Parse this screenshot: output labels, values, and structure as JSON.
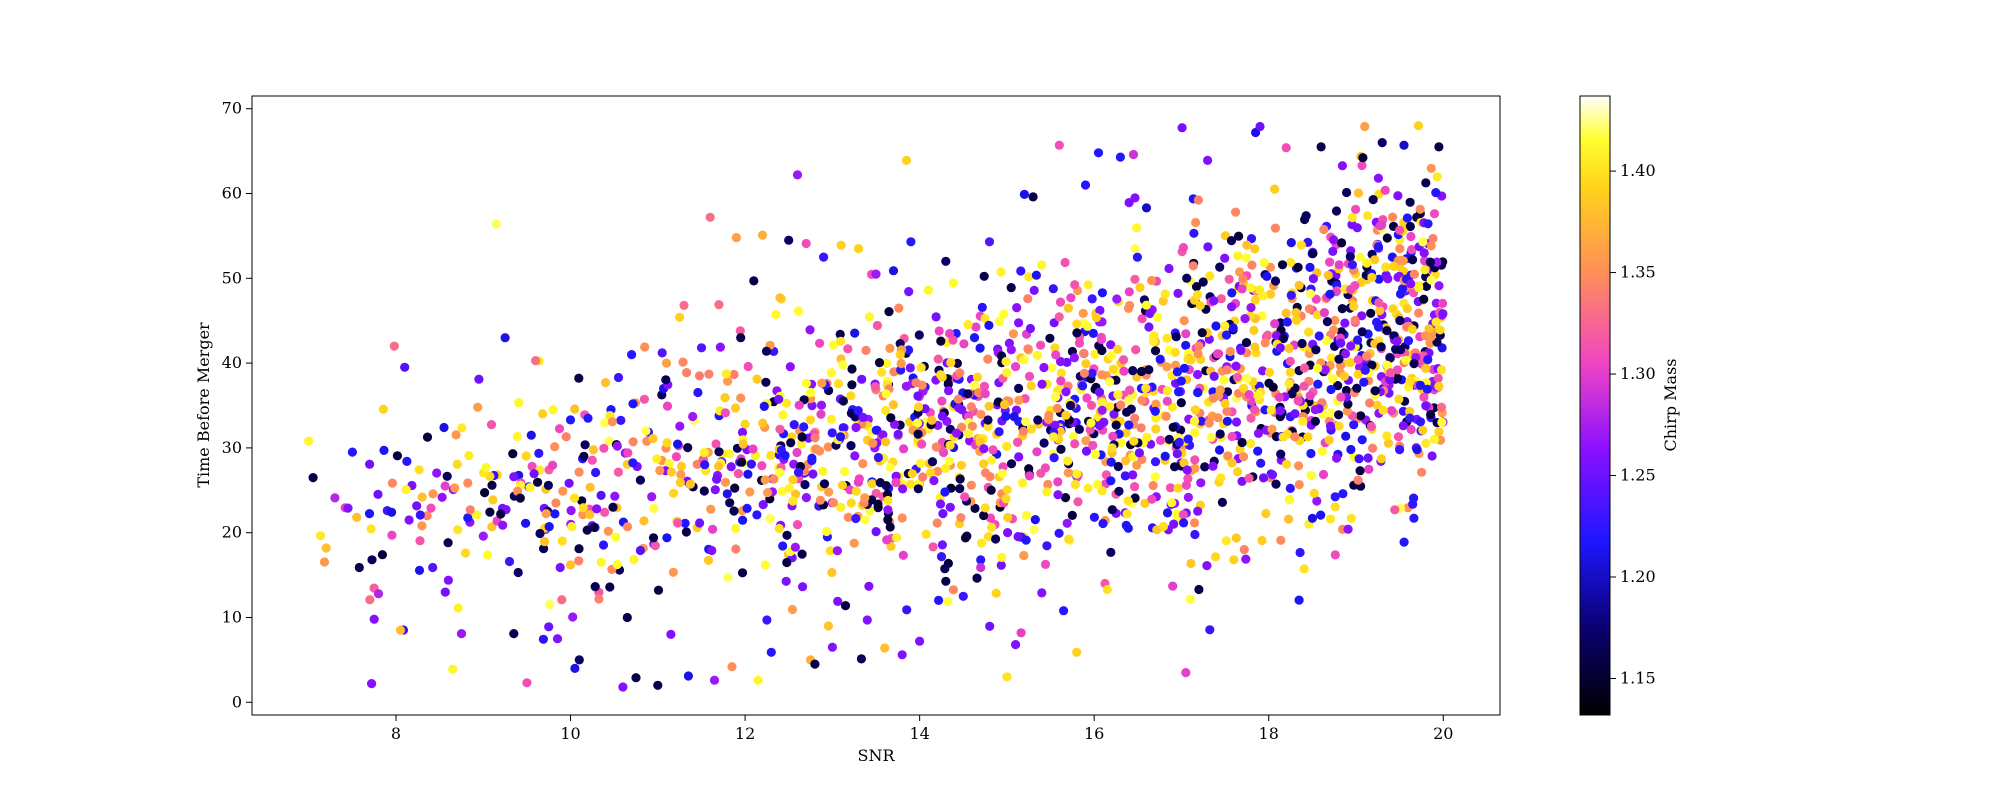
{
  "chart_data": {
    "type": "scatter",
    "xlabel": "SNR",
    "ylabel": "Time Before Merger",
    "xlim": [
      6.35,
      20.65
    ],
    "ylim": [
      -1.5,
      71.5
    ],
    "xticks": [
      8,
      10,
      12,
      14,
      16,
      18,
      20
    ],
    "yticks": [
      0,
      10,
      20,
      30,
      40,
      50,
      60,
      70
    ],
    "grid": false,
    "colorbar": {
      "label": "Chirp Mass",
      "colormap": "gnuplot2",
      "range": [
        1.132,
        1.437
      ],
      "ticks": [
        1.15,
        1.2,
        1.25,
        1.3,
        1.35,
        1.4
      ]
    },
    "approx_point_count": 2000,
    "trend": {
      "description_points": [
        [
          7,
          22
        ],
        [
          10,
          24
        ],
        [
          12,
          27
        ],
        [
          14,
          31
        ],
        [
          16,
          39
        ],
        [
          18,
          45
        ],
        [
          20,
          50
        ]
      ]
    },
    "points": [
      [
        7.05,
        26.5,
        1.16
      ],
      [
        7.0,
        30.8,
        1.41
      ],
      [
        7.2,
        18.2,
        1.38
      ],
      [
        7.3,
        24.1,
        1.28
      ],
      [
        7.5,
        29.5,
        1.22
      ],
      [
        7.55,
        21.8,
        1.38
      ],
      [
        7.45,
        22.9,
        1.26
      ],
      [
        7.7,
        12.1,
        1.33
      ],
      [
        7.75,
        9.8,
        1.26
      ],
      [
        7.72,
        2.2,
        1.26
      ],
      [
        7.8,
        12.8,
        1.28
      ],
      [
        7.9,
        22.6,
        1.23
      ],
      [
        7.95,
        22.4,
        1.21
      ],
      [
        7.98,
        42.0,
        1.33
      ],
      [
        8.05,
        8.5,
        1.38
      ],
      [
        8.1,
        39.5,
        1.24
      ],
      [
        8.15,
        21.5,
        1.26
      ],
      [
        8.3,
        24.2,
        1.38
      ],
      [
        8.42,
        15.9,
        1.24
      ],
      [
        8.55,
        32.4,
        1.21
      ],
      [
        8.6,
        14.4,
        1.26
      ],
      [
        8.65,
        3.9,
        1.41
      ],
      [
        8.75,
        8.1,
        1.27
      ],
      [
        8.85,
        22.7,
        1.34
      ],
      [
        8.95,
        38.1,
        1.25
      ],
      [
        9.0,
        19.6,
        1.27
      ],
      [
        9.1,
        25.6,
        1.16
      ],
      [
        9.15,
        56.4,
        1.42
      ],
      [
        9.2,
        22.2,
        1.16
      ],
      [
        9.25,
        43.0,
        1.21
      ],
      [
        9.3,
        16.6,
        1.23
      ],
      [
        9.35,
        8.1,
        1.16
      ],
      [
        9.4,
        15.3,
        1.17
      ],
      [
        9.5,
        2.3,
        1.31
      ],
      [
        9.55,
        31.5,
        1.21
      ],
      [
        9.6,
        40.3,
        1.33
      ],
      [
        9.65,
        19.9,
        1.17
      ],
      [
        9.75,
        8.9,
        1.25
      ],
      [
        9.8,
        34.5,
        1.41
      ],
      [
        9.85,
        7.5,
        1.26
      ],
      [
        9.9,
        12.1,
        1.33
      ],
      [
        10.0,
        16.2,
        1.38
      ],
      [
        10.05,
        4.0,
        1.21
      ],
      [
        10.1,
        5.0,
        1.17
      ],
      [
        10.0,
        33.3,
        1.22
      ],
      [
        10.2,
        33.5,
        1.22
      ],
      [
        10.3,
        22.8,
        1.26
      ],
      [
        10.35,
        24.4,
        1.24
      ],
      [
        10.4,
        37.7,
        1.38
      ],
      [
        10.45,
        13.6,
        1.16
      ],
      [
        10.55,
        38.3,
        1.23
      ],
      [
        10.6,
        1.8,
        1.26
      ],
      [
        10.65,
        10.0,
        1.16
      ],
      [
        10.7,
        41.0,
        1.22
      ],
      [
        10.75,
        2.9,
        1.16
      ],
      [
        10.8,
        17.9,
        1.24
      ],
      [
        10.85,
        41.9,
        1.35
      ],
      [
        10.95,
        19.4,
        1.16
      ],
      [
        11.0,
        2.0,
        1.16
      ],
      [
        11.05,
        41.2,
        1.24
      ],
      [
        11.1,
        40.0,
        1.36
      ],
      [
        11.15,
        8.0,
        1.26
      ],
      [
        11.25,
        45.4,
        1.39
      ],
      [
        11.3,
        46.8,
        1.33
      ],
      [
        11.35,
        3.1,
        1.21
      ],
      [
        11.4,
        33.7,
        1.27
      ],
      [
        11.5,
        41.8,
        1.24
      ],
      [
        11.6,
        57.2,
        1.33
      ],
      [
        11.65,
        2.6,
        1.27
      ],
      [
        11.7,
        46.9,
        1.33
      ],
      [
        11.85,
        4.2,
        1.35
      ],
      [
        11.9,
        54.8,
        1.36
      ],
      [
        11.95,
        43.0,
        1.16
      ],
      [
        12.1,
        49.7,
        1.16
      ],
      [
        12.15,
        2.6,
        1.41
      ],
      [
        12.2,
        55.1,
        1.37
      ],
      [
        12.25,
        9.7,
        1.23
      ],
      [
        12.3,
        5.9,
        1.22
      ],
      [
        12.4,
        47.7,
        1.38
      ],
      [
        12.5,
        54.5,
        1.17
      ],
      [
        12.6,
        62.2,
        1.27
      ],
      [
        12.7,
        54.1,
        1.31
      ],
      [
        12.75,
        5.0,
        1.37
      ],
      [
        12.8,
        4.5,
        1.16
      ],
      [
        12.9,
        52.5,
        1.23
      ],
      [
        13.0,
        6.5,
        1.26
      ],
      [
        13.1,
        53.9,
        1.39
      ],
      [
        13.15,
        11.4,
        1.16
      ],
      [
        13.3,
        53.5,
        1.39
      ],
      [
        13.4,
        9.7,
        1.26
      ],
      [
        13.5,
        50.5,
        1.27
      ],
      [
        13.6,
        6.4,
        1.38
      ],
      [
        13.7,
        50.9,
        1.21
      ],
      [
        13.8,
        5.6,
        1.26
      ],
      [
        13.85,
        63.9,
        1.39
      ],
      [
        13.9,
        54.3,
        1.22
      ],
      [
        14.0,
        7.2,
        1.26
      ],
      [
        14.1,
        48.6,
        1.41
      ],
      [
        14.3,
        52.0,
        1.17
      ],
      [
        14.5,
        12.5,
        1.23
      ],
      [
        14.7,
        15.9,
        1.29
      ],
      [
        14.8,
        54.3,
        1.24
      ],
      [
        15.0,
        3.0,
        1.4
      ],
      [
        15.1,
        6.8,
        1.26
      ],
      [
        15.2,
        59.9,
        1.21
      ],
      [
        15.3,
        59.6,
        1.16
      ],
      [
        15.4,
        12.9,
        1.26
      ],
      [
        15.6,
        65.7,
        1.31
      ],
      [
        15.65,
        10.8,
        1.22
      ],
      [
        15.8,
        5.9,
        1.39
      ],
      [
        15.9,
        61.0,
        1.22
      ],
      [
        16.05,
        64.8,
        1.22
      ],
      [
        16.15,
        13.3,
        1.4
      ],
      [
        16.3,
        64.3,
        1.22
      ],
      [
        16.45,
        64.6,
        1.29
      ],
      [
        16.6,
        58.3,
        1.2
      ],
      [
        16.9,
        13.7,
        1.3
      ],
      [
        17.05,
        3.5,
        1.3
      ],
      [
        17.2,
        13.3,
        1.16
      ],
      [
        17.3,
        63.9,
        1.26
      ],
      [
        17.6,
        16.8,
        1.39
      ],
      [
        17.85,
        67.2,
        1.21
      ],
      [
        17.9,
        67.9,
        1.25
      ],
      [
        18.2,
        65.4,
        1.31
      ],
      [
        18.5,
        21.7,
        1.21
      ],
      [
        18.6,
        65.5,
        1.16
      ],
      [
        18.85,
        24.6,
        1.22
      ],
      [
        19.1,
        67.9,
        1.36
      ],
      [
        19.3,
        66.0,
        1.17
      ],
      [
        19.5,
        29.8,
        1.23
      ],
      [
        19.55,
        65.7,
        1.2
      ],
      [
        19.7,
        29.8,
        1.21
      ],
      [
        19.9,
        31.0,
        1.41
      ],
      [
        19.95,
        31.9,
        1.39
      ],
      [
        19.95,
        65.5,
        1.16
      ],
      [
        19.98,
        34.8,
        1.33
      ],
      [
        19.98,
        39.2,
        1.4
      ]
    ]
  }
}
